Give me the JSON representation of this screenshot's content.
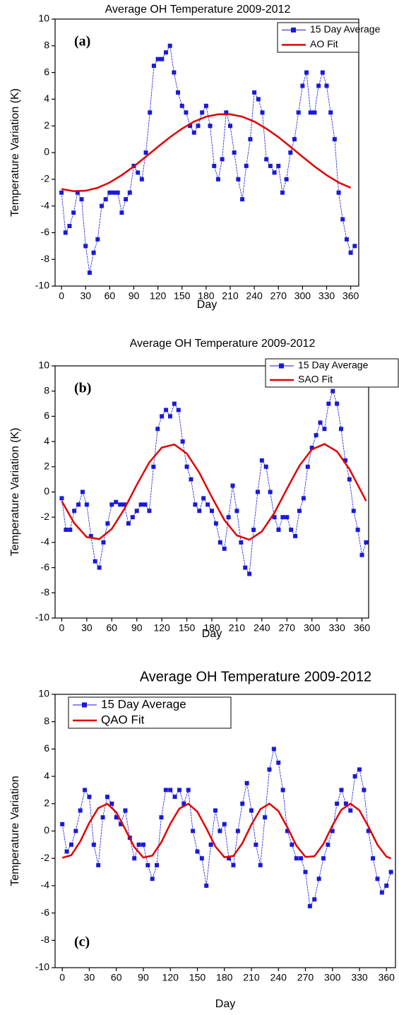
{
  "chart_data": [
    {
      "type": "line",
      "title": "Average OH Temperature 2009-2012",
      "panel_label": "(a)",
      "x_label": "Day",
      "y_label": "Temperature Variation (K)",
      "xlim": [
        -8,
        370
      ],
      "xticks": [
        0,
        30,
        60,
        90,
        120,
        150,
        180,
        210,
        240,
        270,
        300,
        330,
        360
      ],
      "ylim": [
        -10,
        10
      ],
      "yticks": [
        -10,
        -8,
        -6,
        -4,
        -2,
        0,
        2,
        4,
        6,
        8,
        10
      ],
      "legend": "upper right",
      "series": [
        {
          "name": "15 Day Average",
          "color": "#1a1ad6",
          "marker": "square",
          "x": [
            0,
            5,
            10,
            15,
            20,
            25,
            30,
            35,
            40,
            45,
            50,
            55,
            60,
            65,
            70,
            75,
            80,
            85,
            90,
            95,
            100,
            105,
            110,
            115,
            120,
            125,
            130,
            135,
            140,
            145,
            150,
            155,
            160,
            165,
            170,
            175,
            180,
            185,
            190,
            195,
            200,
            205,
            210,
            215,
            220,
            225,
            230,
            235,
            240,
            245,
            250,
            255,
            260,
            265,
            270,
            275,
            280,
            285,
            290,
            295,
            300,
            305,
            310,
            315,
            320,
            325,
            330,
            335,
            340,
            345,
            350,
            355,
            360,
            365
          ],
          "values": [
            -3,
            -6,
            -5.5,
            -4.5,
            -3,
            -3.5,
            -7,
            -9,
            -7.5,
            -6.5,
            -4,
            -3.5,
            -3,
            -3,
            -3,
            -4.5,
            -3.5,
            -3,
            -1,
            -1.5,
            -2,
            0,
            3,
            6.5,
            7,
            7,
            7.5,
            8,
            6,
            4.5,
            3.5,
            3,
            2,
            1.5,
            2,
            3,
            3.5,
            2,
            -1,
            -2,
            -0.5,
            3,
            2,
            0,
            -2,
            -3.5,
            -1,
            1,
            4.5,
            4,
            3,
            -0.5,
            -1,
            -1.5,
            -1,
            -3,
            -2,
            0,
            1,
            3,
            5,
            6,
            3,
            3,
            5,
            6,
            5,
            3,
            1,
            -3,
            -5,
            -6.5,
            -7.5,
            -7
          ]
        },
        {
          "name": "AO Fit",
          "color": "#e00000",
          "marker": "none",
          "x": [
            0,
            15,
            30,
            45,
            60,
            75,
            90,
            105,
            120,
            135,
            150,
            165,
            180,
            195,
            210,
            225,
            240,
            255,
            270,
            285,
            300,
            315,
            330,
            345,
            360
          ],
          "values": [
            -2.73,
            -2.89,
            -2.86,
            -2.64,
            -2.24,
            -1.69,
            -1.04,
            -0.31,
            0.43,
            1.15,
            1.79,
            2.32,
            2.69,
            2.87,
            2.87,
            2.69,
            2.32,
            1.79,
            1.16,
            0.43,
            -0.31,
            -1.04,
            -1.69,
            -2.24,
            -2.64
          ]
        }
      ]
    },
    {
      "type": "line",
      "title": "Average OH Temperature 2009-2012",
      "panel_label": "(b)",
      "x_label": "Day",
      "y_label": "Temperature Variation (K)",
      "xlim": [
        -8,
        368
      ],
      "xticks": [
        0,
        30,
        60,
        90,
        120,
        150,
        180,
        210,
        240,
        270,
        300,
        330,
        360
      ],
      "ylim": [
        -10,
        10
      ],
      "yticks": [
        -10,
        -8,
        -6,
        -4,
        -2,
        0,
        2,
        4,
        6,
        8,
        10
      ],
      "legend": "upper right",
      "series": [
        {
          "name": "15 Day Average",
          "color": "#1a1ad6",
          "marker": "square",
          "x": [
            0,
            5,
            10,
            15,
            20,
            25,
            30,
            35,
            40,
            45,
            50,
            55,
            60,
            65,
            70,
            75,
            80,
            85,
            90,
            95,
            100,
            105,
            110,
            115,
            120,
            125,
            130,
            135,
            140,
            145,
            150,
            155,
            160,
            165,
            170,
            175,
            180,
            185,
            190,
            195,
            200,
            205,
            210,
            215,
            220,
            225,
            230,
            235,
            240,
            245,
            250,
            255,
            260,
            265,
            270,
            275,
            280,
            285,
            290,
            295,
            300,
            305,
            310,
            315,
            320,
            325,
            330,
            335,
            340,
            345,
            350,
            355,
            360,
            365
          ],
          "values": [
            -0.5,
            -3,
            -3,
            -1.5,
            -1,
            0,
            -1,
            -3.5,
            -5.5,
            -6,
            -4,
            -2.5,
            -1,
            -0.8,
            -1,
            -1,
            -2.5,
            -2,
            -1.5,
            -1,
            -1,
            -1.5,
            2,
            5,
            6,
            6.5,
            6,
            7,
            6.5,
            4,
            2,
            1,
            -1,
            -1.5,
            -0.5,
            -1,
            -1.5,
            -2.5,
            -4,
            -4.5,
            -2,
            0.5,
            -1.5,
            -4,
            -6,
            -6.5,
            -3,
            0,
            2.5,
            2,
            0,
            -2,
            -3,
            -2,
            -2,
            -3,
            -3.5,
            -1.5,
            -0.5,
            2,
            3.5,
            4.5,
            5.5,
            5,
            7,
            8,
            7,
            5,
            2.5,
            1,
            -1.5,
            -3,
            -5,
            -4
          ]
        },
        {
          "name": "SAO Fit",
          "color": "#e00000",
          "marker": "none",
          "x": [
            0,
            15,
            30,
            45,
            60,
            75,
            90,
            105,
            120,
            135,
            150,
            165,
            180,
            195,
            210,
            225,
            240,
            255,
            270,
            285,
            300,
            315,
            330,
            345,
            360,
            365
          ],
          "values": [
            -0.73,
            -2.48,
            -3.58,
            -3.74,
            -2.93,
            -1.36,
            0.57,
            2.35,
            3.52,
            3.77,
            3.04,
            1.52,
            -0.41,
            -2.22,
            -3.45,
            -3.79,
            -3.13,
            -1.66,
            0.24,
            2.08,
            3.38,
            3.8,
            3.22,
            1.81,
            -0.08,
            -0.72
          ]
        }
      ]
    },
    {
      "type": "line",
      "title": "Average OH Temperature 2009-2012",
      "panel_label": "(c)",
      "x_label": "Day",
      "y_label": "Temperature Variation",
      "xlim": [
        -8,
        370
      ],
      "xticks": [
        0,
        30,
        60,
        90,
        120,
        150,
        180,
        210,
        240,
        270,
        300,
        330,
        360
      ],
      "ylim": [
        -10,
        10
      ],
      "yticks": [
        -10,
        -8,
        -6,
        -4,
        -2,
        0,
        2,
        4,
        6,
        8,
        10
      ],
      "legend": "upper left",
      "series": [
        {
          "name": "15 Day Average",
          "color": "#1a1ad6",
          "marker": "square",
          "x": [
            0,
            5,
            10,
            15,
            20,
            25,
            30,
            35,
            40,
            45,
            50,
            55,
            60,
            65,
            70,
            75,
            80,
            85,
            90,
            95,
            100,
            105,
            110,
            115,
            120,
            125,
            130,
            135,
            140,
            145,
            150,
            155,
            160,
            165,
            170,
            175,
            180,
            185,
            190,
            195,
            200,
            205,
            210,
            215,
            220,
            225,
            230,
            235,
            240,
            245,
            250,
            255,
            260,
            265,
            270,
            275,
            280,
            285,
            290,
            295,
            300,
            305,
            310,
            315,
            320,
            325,
            330,
            335,
            340,
            345,
            350,
            355,
            360,
            365
          ],
          "values": [
            0.5,
            -1.5,
            -1,
            0,
            1.5,
            3,
            2.5,
            -1,
            -2.5,
            1,
            2.5,
            2,
            1,
            0.5,
            1.5,
            -0.5,
            -2,
            -1,
            -1,
            -2.5,
            -3.5,
            -2.5,
            1,
            3,
            3,
            2.5,
            3,
            2,
            3,
            0,
            -1.5,
            -2,
            -4,
            -1,
            1.5,
            0,
            0.5,
            -2,
            -2.5,
            0,
            2,
            3.5,
            1.5,
            -1,
            -2.5,
            1,
            4.5,
            6,
            5,
            3,
            0,
            -1,
            -2,
            -2,
            -3,
            -5.5,
            -5,
            -3.5,
            -2,
            -1,
            0,
            2,
            3,
            2,
            1.5,
            4,
            4.5,
            3,
            0,
            -2,
            -3.5,
            -4.5,
            -4,
            -3
          ]
        },
        {
          "name": "QAO Fit",
          "color": "#e00000",
          "marker": "none",
          "x": [
            0,
            10,
            20,
            30,
            40,
            50,
            60,
            70,
            80,
            90,
            100,
            110,
            120,
            130,
            140,
            150,
            160,
            170,
            180,
            190,
            200,
            210,
            220,
            230,
            240,
            250,
            260,
            270,
            280,
            290,
            300,
            310,
            320,
            330,
            340,
            350,
            360,
            365
          ],
          "values": [
            -1.96,
            -1.77,
            -0.76,
            0.6,
            1.68,
            1.99,
            1.37,
            0.12,
            -1.18,
            -1.94,
            -1.8,
            -0.82,
            0.53,
            1.64,
            1.99,
            1.41,
            0.19,
            -1.13,
            -1.92,
            -1.83,
            -0.89,
            0.47,
            1.6,
            2,
            1.46,
            0.26,
            -1.07,
            -1.9,
            -1.85,
            -0.95,
            0.4,
            1.56,
            2,
            1.51,
            0.32,
            -1.01,
            -1.88,
            -2
          ]
        }
      ]
    }
  ]
}
